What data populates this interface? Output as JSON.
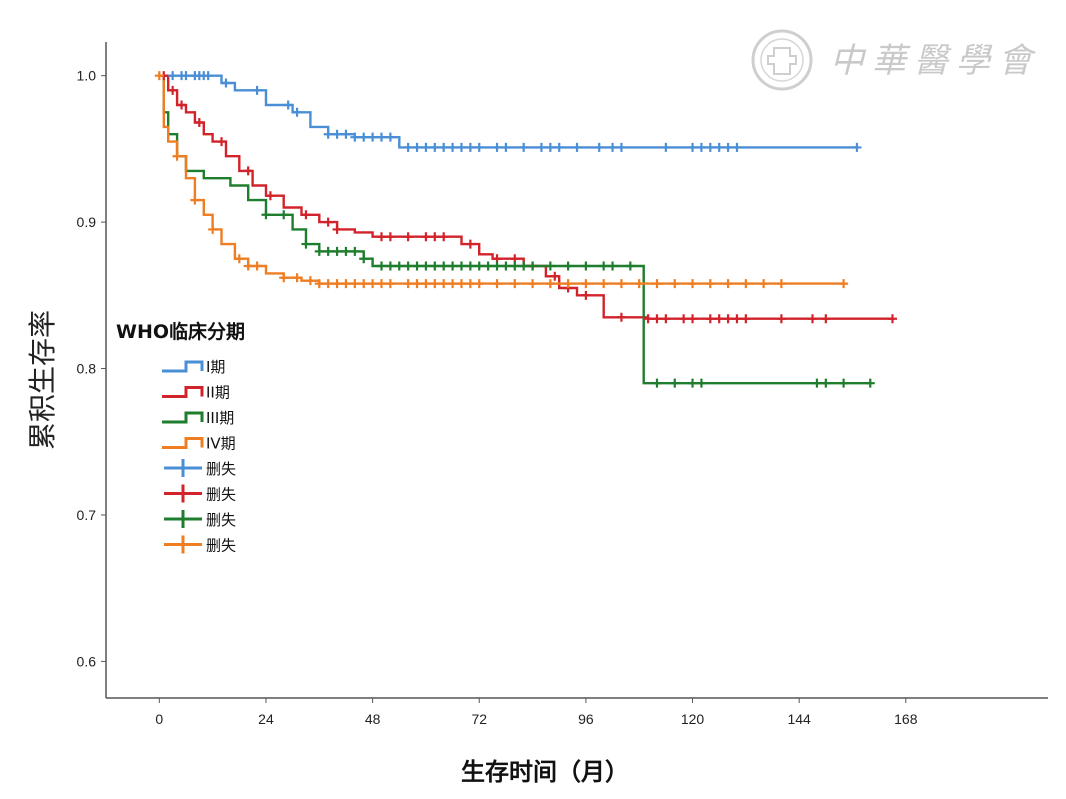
{
  "chart_data": {
    "type": "line",
    "step": true,
    "title": "",
    "xlabel": "生存时间（月）",
    "ylabel": "累积生存率",
    "xlim": [
      -12,
      200
    ],
    "ylim": [
      0.575,
      1.023
    ],
    "xticks": [
      "0",
      "24",
      "48",
      "72",
      "96",
      "120",
      "144",
      "168"
    ],
    "yticks": [
      "1.0",
      "0.9",
      "0.8",
      "0.7",
      "0.6"
    ],
    "grid": false,
    "legend_title": "WHO临床分期",
    "legend_position": "left-middle",
    "series": [
      {
        "name": "I期",
        "color": "#4a8fd6",
        "x": [
          0,
          5,
          10,
          14,
          17,
          24,
          30,
          34,
          38,
          44,
          54,
          60,
          72,
          96,
          120,
          157
        ],
        "y": [
          1.0,
          1.0,
          1.0,
          0.995,
          0.99,
          0.98,
          0.975,
          0.965,
          0.96,
          0.958,
          0.951,
          0.951,
          0.951,
          0.951,
          0.951,
          0.951
        ],
        "censored_x": [
          3,
          5,
          6,
          8,
          9,
          10,
          11,
          15,
          22,
          29,
          31,
          38,
          40,
          42,
          44,
          46,
          48,
          50,
          52,
          56,
          58,
          60,
          62,
          64,
          66,
          68,
          70,
          72,
          76,
          78,
          82,
          86,
          88,
          90,
          94,
          99,
          102,
          104,
          114,
          120,
          122,
          124,
          126,
          128,
          130,
          157
        ]
      },
      {
        "name": "II期",
        "color": "#d2232a",
        "x": [
          0,
          2,
          4,
          6,
          8,
          10,
          12,
          15,
          18,
          21,
          24,
          28,
          32,
          36,
          40,
          44,
          48,
          60,
          68,
          72,
          75,
          78,
          82,
          87,
          90,
          94,
          100,
          110,
          130,
          165
        ],
        "y": [
          1.0,
          0.99,
          0.98,
          0.975,
          0.968,
          0.96,
          0.955,
          0.945,
          0.935,
          0.925,
          0.918,
          0.91,
          0.905,
          0.9,
          0.895,
          0.893,
          0.89,
          0.89,
          0.885,
          0.878,
          0.875,
          0.875,
          0.87,
          0.863,
          0.855,
          0.85,
          0.835,
          0.834,
          0.834,
          0.834
        ],
        "censored_x": [
          1,
          3,
          5,
          9,
          14,
          20,
          25,
          33,
          38,
          40,
          50,
          52,
          56,
          60,
          62,
          64,
          70,
          76,
          80,
          84,
          89,
          92,
          96,
          104,
          110,
          112,
          114,
          118,
          120,
          124,
          126,
          128,
          130,
          132,
          140,
          147,
          150,
          165
        ]
      },
      {
        "name": "III期",
        "color": "#1f7d2e",
        "x": [
          0,
          1,
          2,
          4,
          6,
          10,
          16,
          20,
          24,
          30,
          33,
          36,
          46,
          48,
          72,
          95,
          108,
          109,
          160
        ],
        "y": [
          1.0,
          0.975,
          0.96,
          0.945,
          0.935,
          0.93,
          0.925,
          0.915,
          0.905,
          0.895,
          0.885,
          0.88,
          0.875,
          0.87,
          0.87,
          0.87,
          0.87,
          0.79,
          0.79
        ],
        "censored_x": [
          24,
          28,
          33,
          36,
          38,
          40,
          42,
          44,
          46,
          50,
          52,
          54,
          56,
          58,
          60,
          62,
          64,
          66,
          68,
          70,
          72,
          74,
          76,
          78,
          80,
          82,
          84,
          88,
          92,
          96,
          100,
          102,
          106,
          112,
          116,
          120,
          122,
          148,
          150,
          154,
          160
        ]
      },
      {
        "name": "IV期",
        "color": "#ef7d22",
        "x": [
          0,
          1,
          2,
          4,
          6,
          8,
          10,
          12,
          14,
          17,
          20,
          24,
          28,
          32,
          36,
          48,
          72,
          88,
          154
        ],
        "y": [
          1.0,
          0.965,
          0.955,
          0.945,
          0.93,
          0.915,
          0.905,
          0.895,
          0.885,
          0.875,
          0.87,
          0.865,
          0.862,
          0.86,
          0.858,
          0.858,
          0.858,
          0.858,
          0.858
        ],
        "censored_x": [
          0,
          4,
          8,
          12,
          18,
          20,
          22,
          28,
          31,
          34,
          36,
          38,
          40,
          42,
          44,
          46,
          48,
          50,
          52,
          56,
          58,
          60,
          62,
          64,
          66,
          68,
          70,
          72,
          76,
          80,
          84,
          88,
          92,
          96,
          100,
          104,
          108,
          112,
          116,
          120,
          124,
          128,
          132,
          136,
          140,
          154
        ]
      }
    ],
    "legend_entries": [
      {
        "label": "I期",
        "color": "#4a8fd6",
        "symbol": "line"
      },
      {
        "label": "II期",
        "color": "#d2232a",
        "symbol": "line"
      },
      {
        "label": "III期",
        "color": "#1f7d2e",
        "symbol": "line"
      },
      {
        "label": "IV期",
        "color": "#ef7d22",
        "symbol": "line"
      },
      {
        "label": "删失",
        "color": "#4a8fd6",
        "symbol": "plus"
      },
      {
        "label": "删失",
        "color": "#d2232a",
        "symbol": "plus"
      },
      {
        "label": "删失",
        "color": "#1f7d2e",
        "symbol": "plus"
      },
      {
        "label": "删失",
        "color": "#ef7d22",
        "symbol": "plus"
      }
    ]
  },
  "watermark": {
    "text": "中華醫學會",
    "logo_icon": "medical-association-seal-icon",
    "color": "#c9c9c9"
  }
}
